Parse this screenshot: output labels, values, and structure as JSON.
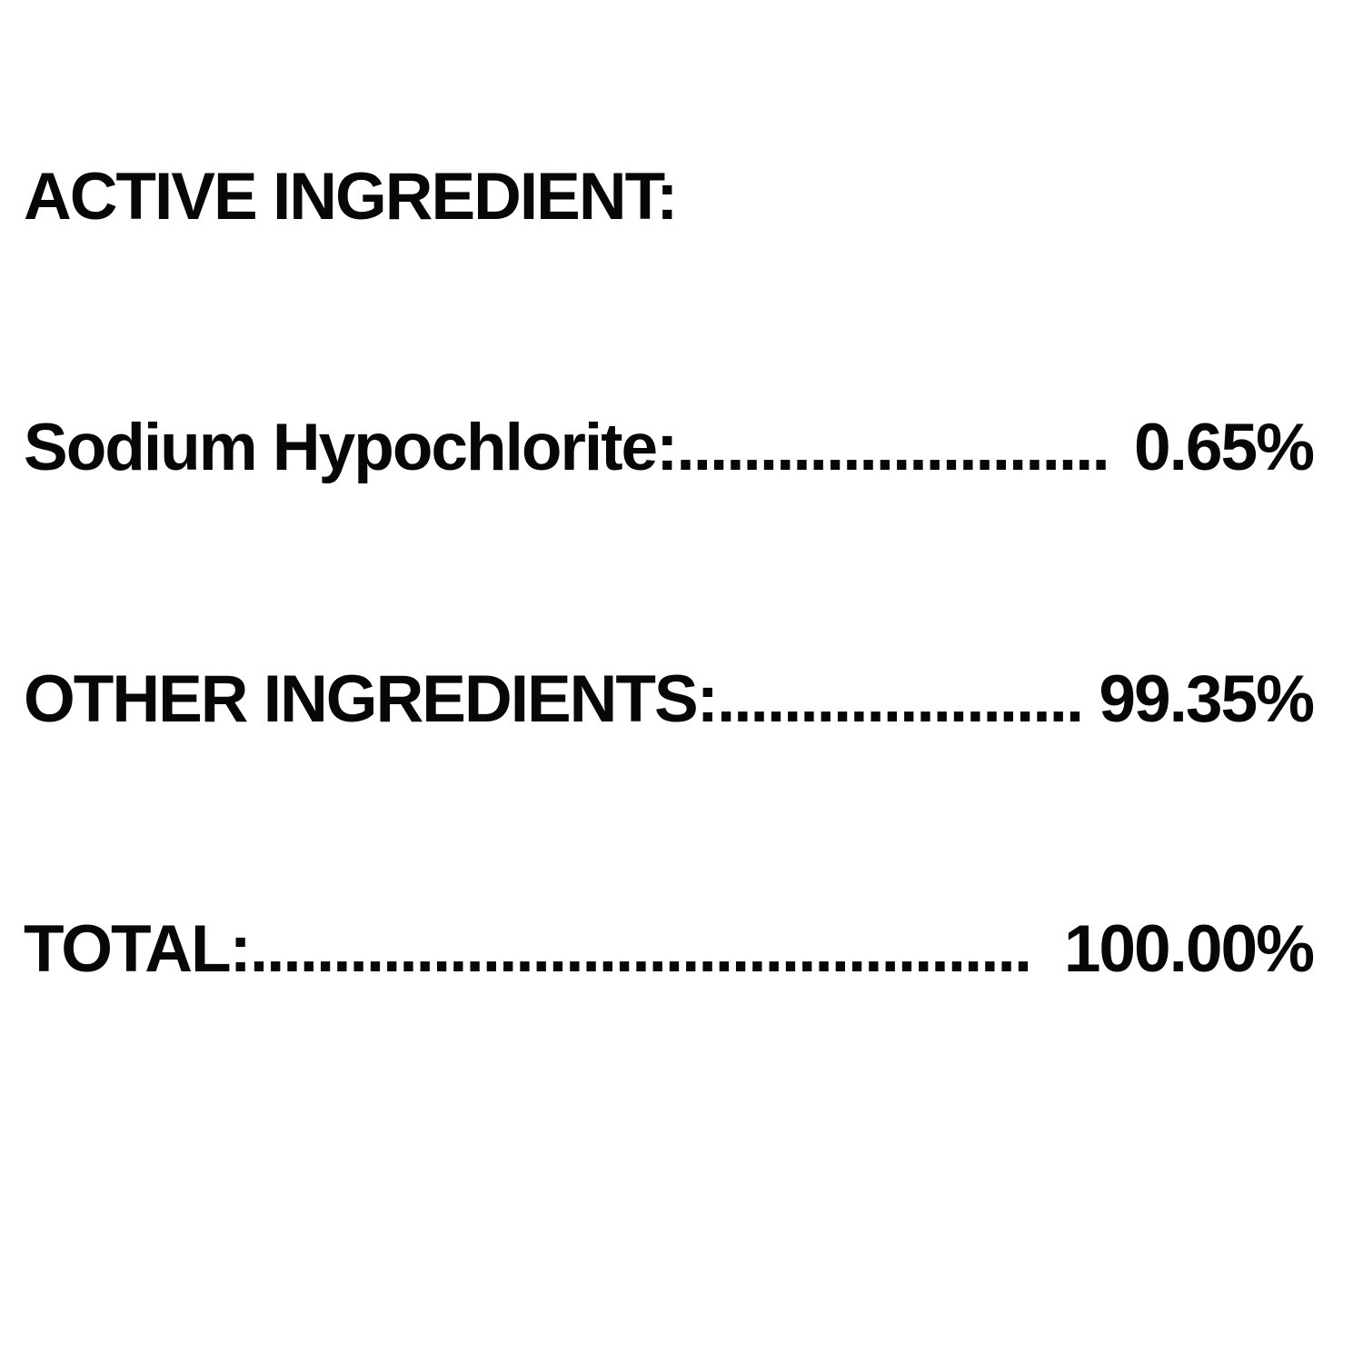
{
  "page": {
    "background": "#ffffff",
    "text_color": "#070707"
  },
  "label_panel": {
    "heading": "ACTIVE INGREDIENT:",
    "rows": [
      {
        "label": "Sodium Hypochlorite:",
        "dots": "..........................",
        "value": "0.65%"
      },
      {
        "label": "OTHER INGREDIENTS:",
        "dots": "........................",
        "value": "99.35%"
      },
      {
        "label": "TOTAL:",
        "dots": "...............................................",
        "value": "100.00%"
      }
    ]
  }
}
